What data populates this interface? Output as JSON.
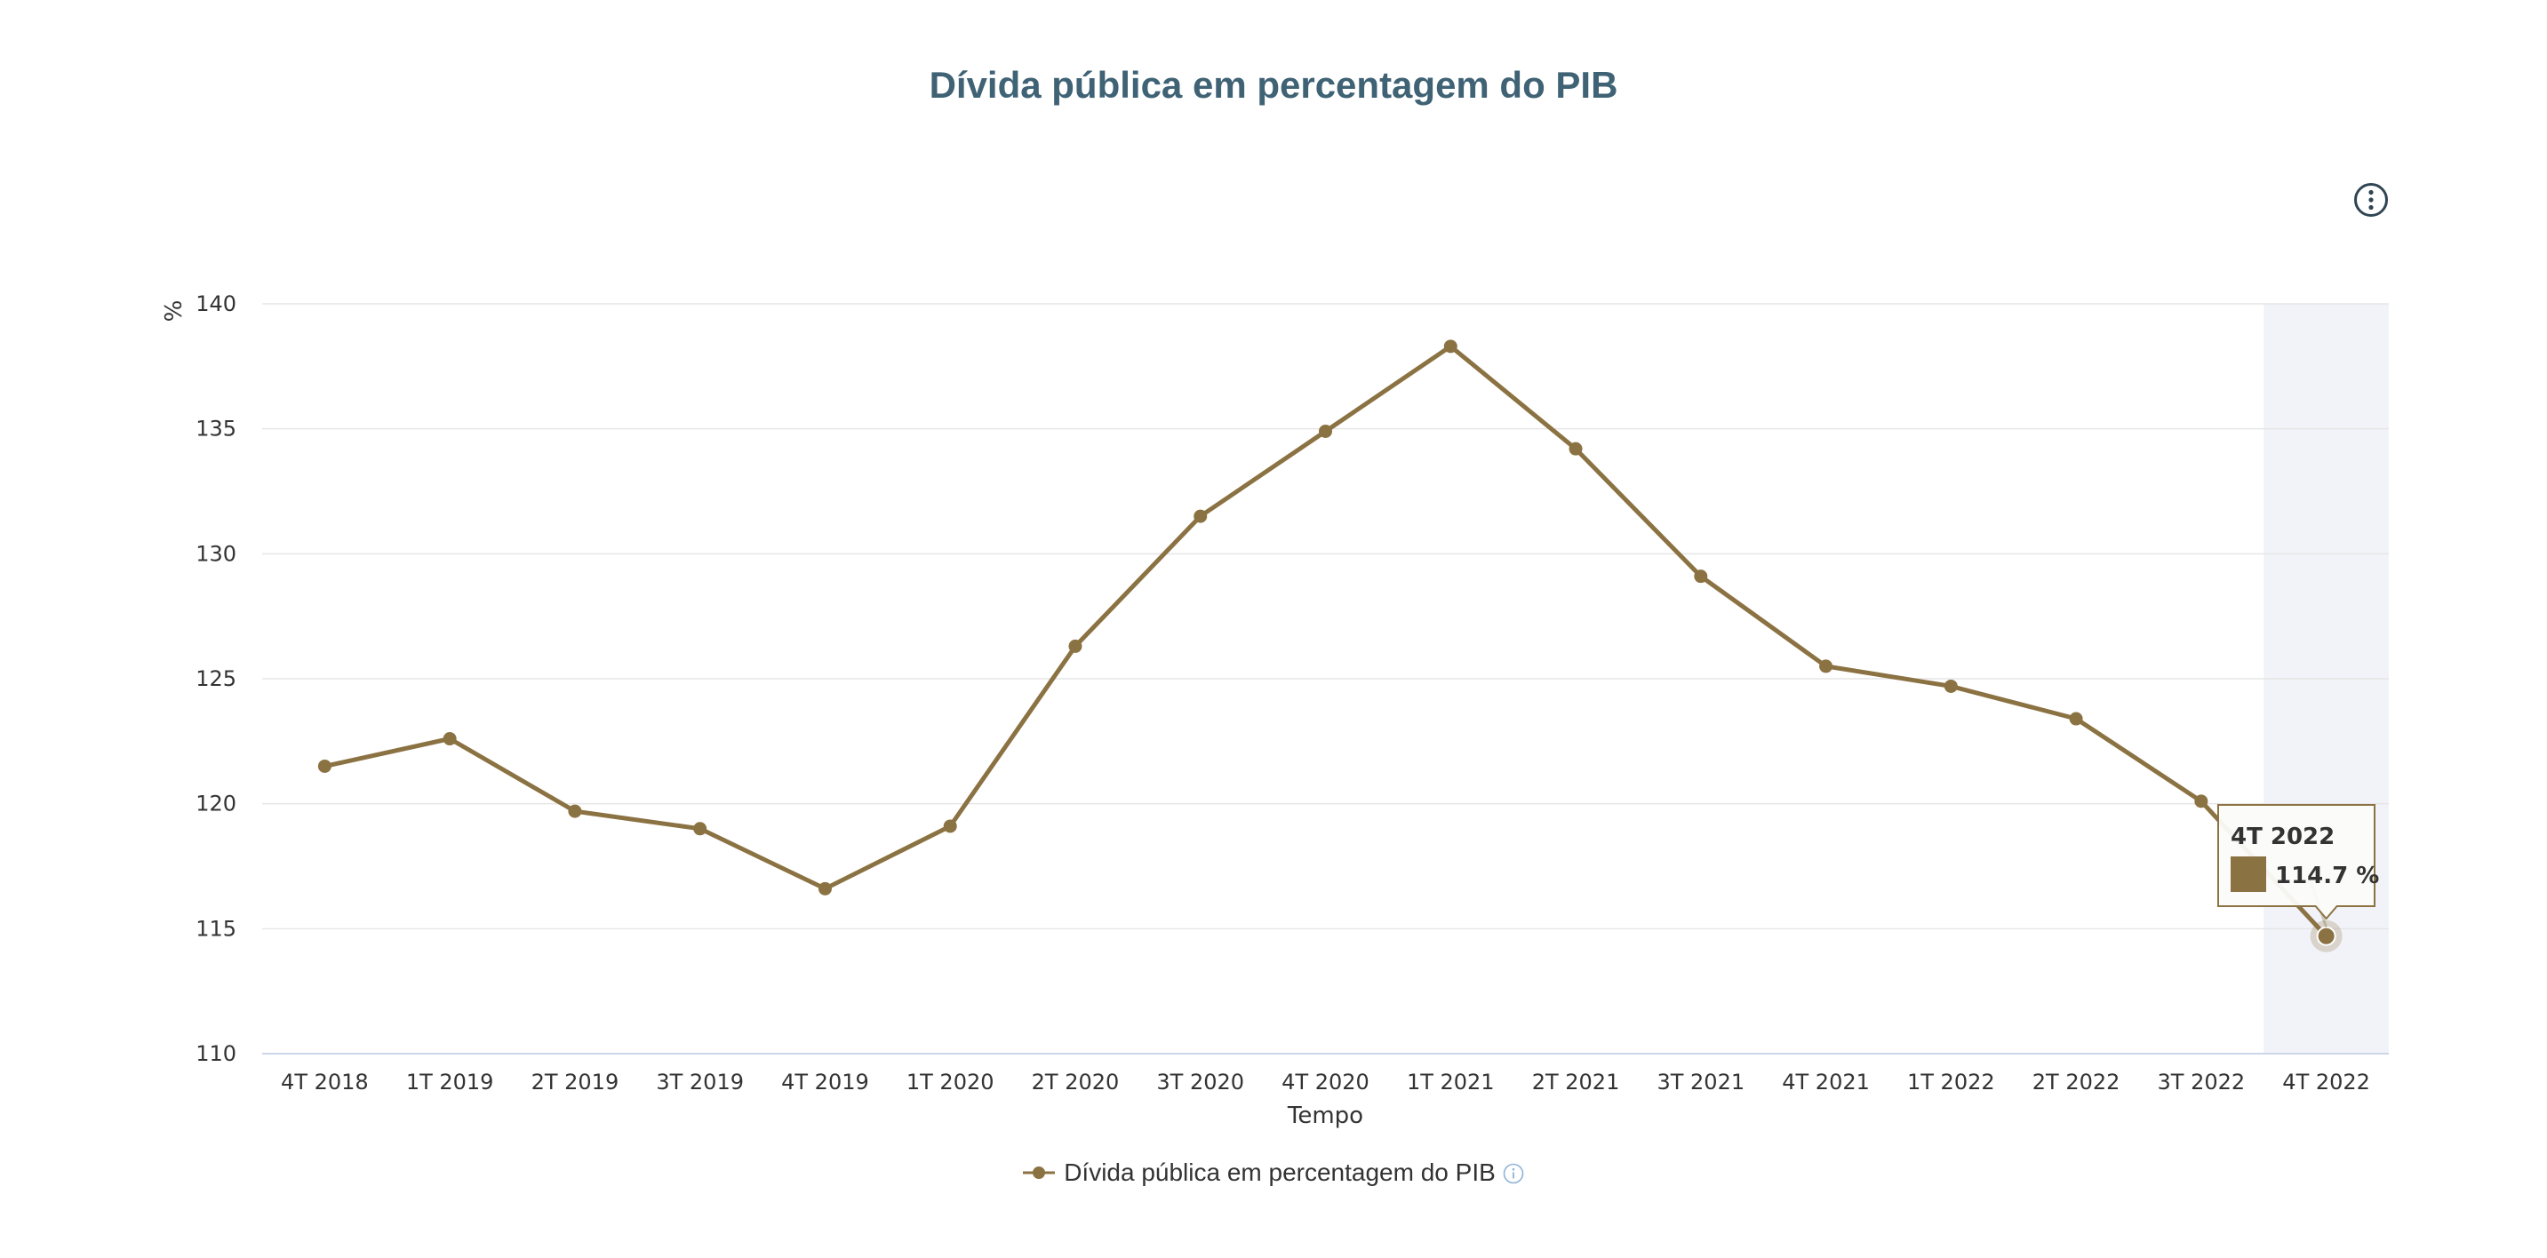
{
  "chart_data": {
    "type": "line",
    "title": "Dívida pública em percentagem do PIB",
    "xlabel": "Tempo",
    "ylabel": "%",
    "ylim": [
      110,
      140
    ],
    "yticks": [
      "110",
      "115",
      "120",
      "125",
      "130",
      "135",
      "140"
    ],
    "grid": true,
    "legend_position": "bottom-center",
    "categories": [
      "4T 2018",
      "1T 2019",
      "2T 2019",
      "3T 2019",
      "4T 2019",
      "1T 2020",
      "2T 2020",
      "3T 2020",
      "4T 2020",
      "1T 2021",
      "2T 2021",
      "3T 2021",
      "4T 2021",
      "1T 2022",
      "2T 2022",
      "3T 2022",
      "4T 2022"
    ],
    "series": [
      {
        "name": "Dívida pública em percentagem do PIB",
        "color": "#8b7242",
        "values": [
          121.5,
          122.6,
          119.7,
          119.0,
          116.6,
          119.1,
          126.3,
          131.5,
          134.9,
          138.3,
          134.2,
          129.1,
          125.5,
          124.7,
          123.4,
          120.1,
          114.7
        ]
      }
    ],
    "highlight": {
      "category": "4T 2022",
      "value_label": "114.7 %",
      "band_color": "#f2f3f9"
    }
  },
  "legend": {
    "label": "Dívida pública em percentagem do PIB",
    "info_icon": "info-circle-icon"
  },
  "menu": {
    "icon": "kebab-menu-icon"
  },
  "colors": {
    "title": "#3f6275",
    "series": "#8b7242",
    "grid": "#e6e6e6"
  }
}
